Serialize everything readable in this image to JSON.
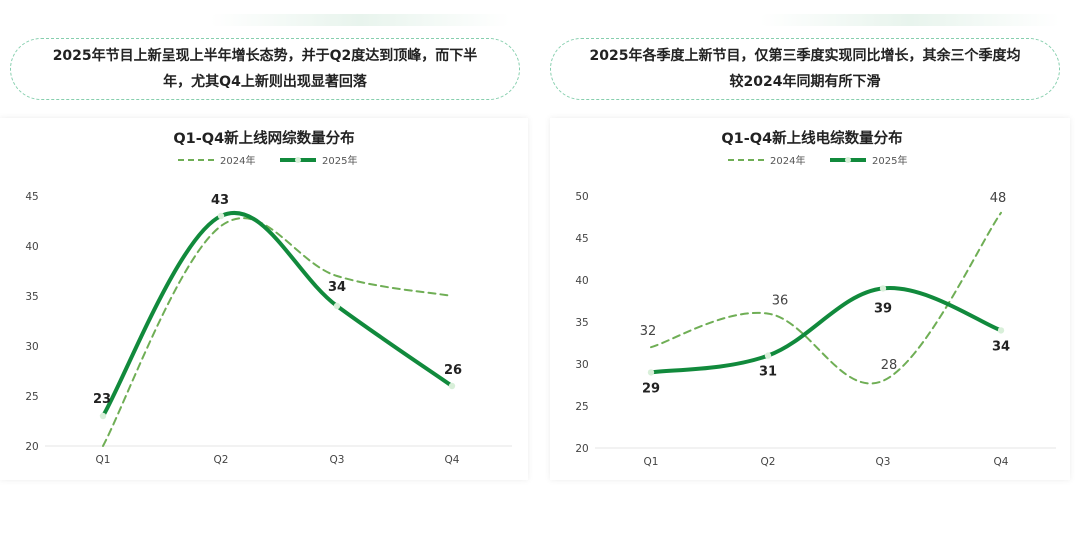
{
  "callouts": {
    "left": "2025年节目上新呈现上半年增长态势，并于Q2度达到顶峰，而下半年，尤其Q4上新则出现显著回落",
    "right": "2025年各季度上新节目，仅第三季度实现同比增长，其余三个季度均较2024年同期有所下滑"
  },
  "colors": {
    "series_2024": "#6fae55",
    "series_2025": "#118a3c",
    "marker_fill": "#d8efd9",
    "callout_border": "#86cfae"
  },
  "chart_data": [
    {
      "type": "line",
      "title": "Q1-Q4新上线网综数量分布",
      "categories": [
        "Q1",
        "Q2",
        "Q3",
        "Q4"
      ],
      "ylim": [
        20,
        45
      ],
      "yticks": [
        20,
        25,
        30,
        35,
        40,
        45
      ],
      "grid": false,
      "legend_position": "top",
      "series": [
        {
          "name": "2024年",
          "values": [
            20,
            42,
            37,
            35
          ],
          "style": "dashed",
          "labels": false
        },
        {
          "name": "2025年",
          "values": [
            23,
            43,
            34,
            26
          ],
          "style": "solid",
          "labels": true
        }
      ]
    },
    {
      "type": "line",
      "title": "Q1-Q4新上线电综数量分布",
      "categories": [
        "Q1",
        "Q2",
        "Q3",
        "Q4"
      ],
      "ylim": [
        20,
        50
      ],
      "yticks": [
        20,
        25,
        30,
        35,
        40,
        45,
        50
      ],
      "grid": false,
      "legend_position": "top",
      "series": [
        {
          "name": "2024年",
          "values": [
            32,
            36,
            28,
            48
          ],
          "style": "dashed",
          "labels": true
        },
        {
          "name": "2025年",
          "values": [
            29,
            31,
            39,
            34
          ],
          "style": "solid",
          "labels": true
        }
      ]
    }
  ]
}
